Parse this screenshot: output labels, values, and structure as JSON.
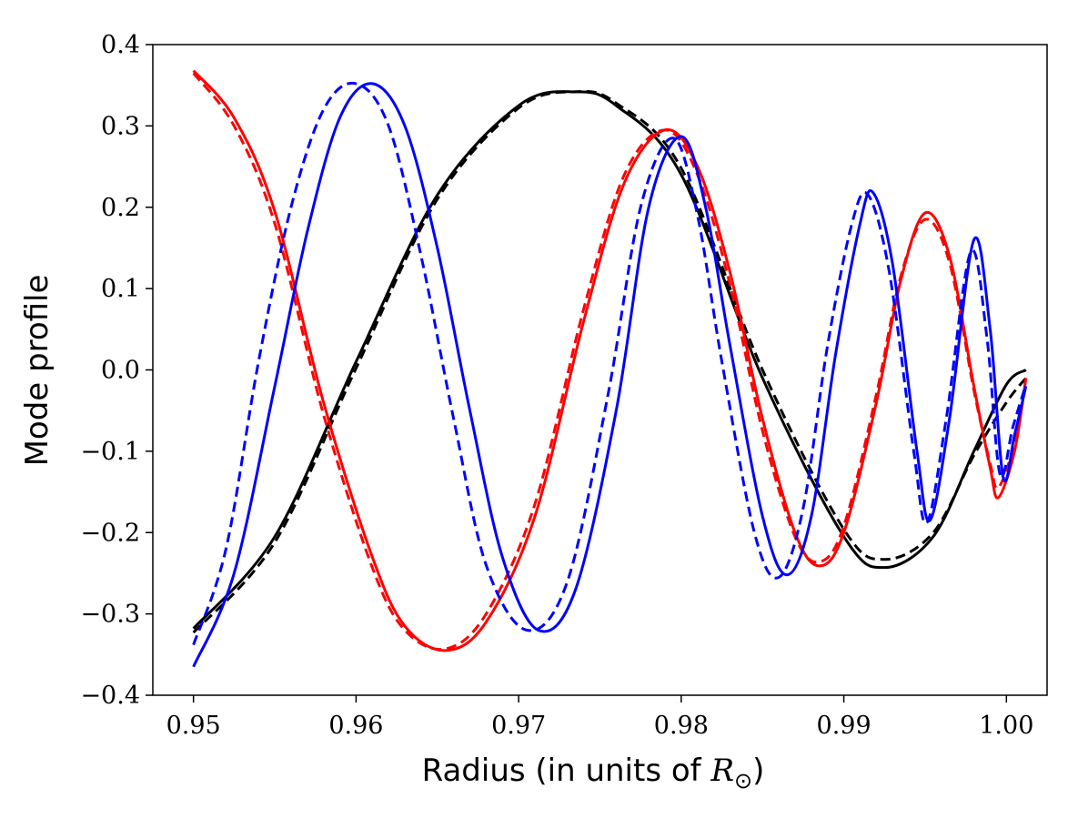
{
  "chart_data": {
    "type": "line",
    "title": "",
    "xlabel": "Radius (in units of ",
    "xlabel_symbol": "R",
    "xlabel_subscript": "⊙",
    "xlabel_close": ")",
    "ylabel": "Mode profile",
    "xlim": [
      0.9475,
      1.0025
    ],
    "ylim": [
      -0.4,
      0.4
    ],
    "xticks": [
      0.95,
      0.96,
      0.97,
      0.98,
      0.99,
      1.0
    ],
    "xtick_labels": [
      "0.95",
      "0.96",
      "0.97",
      "0.98",
      "0.99",
      "1.00"
    ],
    "yticks": [
      -0.4,
      -0.3,
      -0.2,
      -0.1,
      0.0,
      0.1,
      0.2,
      0.3,
      0.4
    ],
    "ytick_labels": [
      "−0.4",
      "−0.3",
      "−0.2",
      "−0.1",
      "0.0",
      "0.1",
      "0.2",
      "0.3",
      "0.4"
    ],
    "grid": false,
    "series": [
      {
        "color": "#000000",
        "dash": "solid",
        "points": [
          [
            0.95,
            -0.318
          ],
          [
            0.955,
            -0.205
          ],
          [
            0.96,
            0.01
          ],
          [
            0.965,
            0.215
          ],
          [
            0.97,
            0.325
          ],
          [
            0.9735,
            0.342
          ],
          [
            0.976,
            0.325
          ],
          [
            0.98,
            0.24
          ],
          [
            0.985,
            -0.01
          ],
          [
            0.99,
            -0.205
          ],
          [
            0.9925,
            -0.243
          ],
          [
            0.9955,
            -0.205
          ],
          [
            0.998,
            -0.1
          ],
          [
            1.0,
            -0.018
          ],
          [
            1.0012,
            0.0
          ]
        ]
      },
      {
        "color": "#000000",
        "dash": "dashed",
        "points": [
          [
            0.95,
            -0.323
          ],
          [
            0.955,
            -0.212
          ],
          [
            0.96,
            0.002
          ],
          [
            0.965,
            0.21
          ],
          [
            0.97,
            0.322
          ],
          [
            0.9735,
            0.342
          ],
          [
            0.976,
            0.328
          ],
          [
            0.98,
            0.248
          ],
          [
            0.985,
            0.0
          ],
          [
            0.99,
            -0.196
          ],
          [
            0.9925,
            -0.233
          ],
          [
            0.9955,
            -0.2
          ],
          [
            0.998,
            -0.105
          ],
          [
            1.0,
            -0.04
          ],
          [
            1.0012,
            -0.01
          ]
        ]
      },
      {
        "color": "#ff0000",
        "dash": "solid",
        "points": [
          [
            0.95,
            0.368
          ],
          [
            0.9525,
            0.31
          ],
          [
            0.955,
            0.195
          ],
          [
            0.958,
            -0.04
          ],
          [
            0.961,
            -0.23
          ],
          [
            0.963,
            -0.315
          ],
          [
            0.9655,
            -0.345
          ],
          [
            0.968,
            -0.31
          ],
          [
            0.971,
            -0.18
          ],
          [
            0.974,
            0.06
          ],
          [
            0.9765,
            0.23
          ],
          [
            0.979,
            0.295
          ],
          [
            0.981,
            0.25
          ],
          [
            0.983,
            0.12
          ],
          [
            0.985,
            -0.06
          ],
          [
            0.987,
            -0.2
          ],
          [
            0.9885,
            -0.241
          ],
          [
            0.99,
            -0.2
          ],
          [
            0.992,
            -0.04
          ],
          [
            0.9935,
            0.11
          ],
          [
            0.995,
            0.193
          ],
          [
            0.9965,
            0.14
          ],
          [
            0.998,
            -0.02
          ],
          [
            0.999,
            -0.12
          ],
          [
            0.9995,
            -0.157
          ],
          [
            1.0005,
            -0.1
          ],
          [
            1.0012,
            -0.01
          ]
        ]
      },
      {
        "color": "#ff0000",
        "dash": "dashed",
        "points": [
          [
            0.95,
            0.365
          ],
          [
            0.9525,
            0.3
          ],
          [
            0.955,
            0.18
          ],
          [
            0.958,
            -0.055
          ],
          [
            0.961,
            -0.243
          ],
          [
            0.963,
            -0.32
          ],
          [
            0.9655,
            -0.343
          ],
          [
            0.968,
            -0.3
          ],
          [
            0.971,
            -0.165
          ],
          [
            0.974,
            0.075
          ],
          [
            0.9765,
            0.24
          ],
          [
            0.979,
            0.295
          ],
          [
            0.981,
            0.24
          ],
          [
            0.983,
            0.105
          ],
          [
            0.985,
            -0.075
          ],
          [
            0.987,
            -0.205
          ],
          [
            0.9885,
            -0.236
          ],
          [
            0.99,
            -0.192
          ],
          [
            0.992,
            -0.03
          ],
          [
            0.9935,
            0.115
          ],
          [
            0.995,
            0.185
          ],
          [
            0.9965,
            0.132
          ],
          [
            0.998,
            -0.025
          ],
          [
            0.999,
            -0.115
          ],
          [
            0.9995,
            -0.145
          ],
          [
            1.0005,
            -0.09
          ],
          [
            1.0012,
            -0.015
          ]
        ]
      },
      {
        "color": "#0000ff",
        "dash": "solid",
        "points": [
          [
            0.95,
            -0.365
          ],
          [
            0.9525,
            -0.25
          ],
          [
            0.955,
            -0.02
          ],
          [
            0.957,
            0.17
          ],
          [
            0.959,
            0.31
          ],
          [
            0.961,
            0.352
          ],
          [
            0.963,
            0.3
          ],
          [
            0.965,
            0.15
          ],
          [
            0.967,
            -0.05
          ],
          [
            0.969,
            -0.23
          ],
          [
            0.9712,
            -0.32
          ],
          [
            0.9735,
            -0.27
          ],
          [
            0.976,
            -0.05
          ],
          [
            0.978,
            0.2
          ],
          [
            0.98,
            0.287
          ],
          [
            0.9815,
            0.2
          ],
          [
            0.983,
            0.03
          ],
          [
            0.985,
            -0.18
          ],
          [
            0.9865,
            -0.252
          ],
          [
            0.988,
            -0.18
          ],
          [
            0.9895,
            0.02
          ],
          [
            0.991,
            0.18
          ],
          [
            0.9918,
            0.218
          ],
          [
            0.993,
            0.13
          ],
          [
            0.9945,
            -0.1
          ],
          [
            0.9953,
            -0.185
          ],
          [
            0.9965,
            -0.06
          ],
          [
            0.998,
            0.16
          ],
          [
            0.999,
            0.05
          ],
          [
            0.9998,
            -0.132
          ],
          [
            1.0005,
            -0.08
          ],
          [
            1.0012,
            -0.02
          ]
        ]
      },
      {
        "color": "#0000ff",
        "dash": "dashed",
        "points": [
          [
            0.95,
            -0.338
          ],
          [
            0.952,
            -0.22
          ],
          [
            0.954,
            0.01
          ],
          [
            0.956,
            0.2
          ],
          [
            0.958,
            0.32
          ],
          [
            0.96,
            0.352
          ],
          [
            0.962,
            0.3
          ],
          [
            0.964,
            0.14
          ],
          [
            0.966,
            -0.06
          ],
          [
            0.968,
            -0.24
          ],
          [
            0.9705,
            -0.32
          ],
          [
            0.973,
            -0.26
          ],
          [
            0.9755,
            -0.03
          ],
          [
            0.9775,
            0.2
          ],
          [
            0.9795,
            0.285
          ],
          [
            0.981,
            0.19
          ],
          [
            0.9825,
            0.01
          ],
          [
            0.9845,
            -0.2
          ],
          [
            0.986,
            -0.255
          ],
          [
            0.9875,
            -0.17
          ],
          [
            0.989,
            0.03
          ],
          [
            0.9905,
            0.18
          ],
          [
            0.9915,
            0.215
          ],
          [
            0.9928,
            0.12
          ],
          [
            0.9943,
            -0.1
          ],
          [
            0.9951,
            -0.188
          ],
          [
            0.9963,
            -0.06
          ],
          [
            0.9978,
            0.145
          ],
          [
            0.9988,
            0.04
          ],
          [
            0.9996,
            -0.128
          ],
          [
            1.0004,
            -0.07
          ],
          [
            1.0012,
            -0.018
          ]
        ]
      }
    ]
  }
}
